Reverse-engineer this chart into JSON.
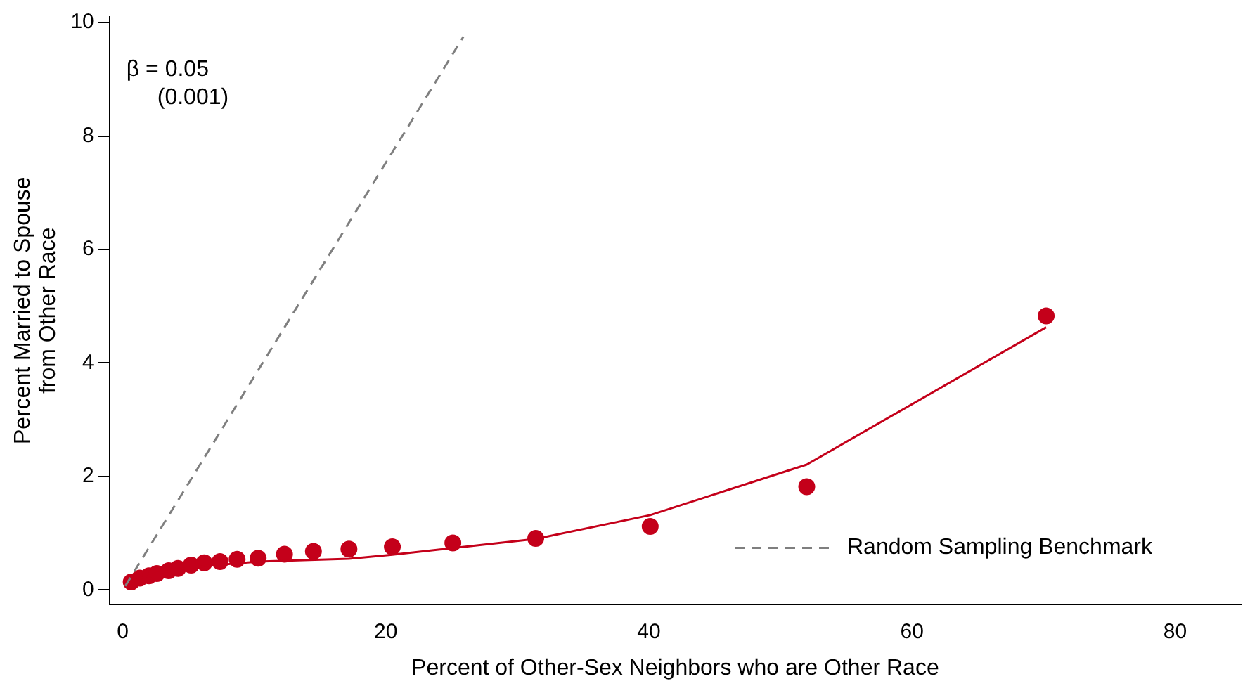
{
  "chart_data": {
    "type": "scatter",
    "xlabel": "Percent of Other-Sex Neighbors who are Other Race",
    "ylabel": "Percent Married to Spouse\nfrom Other Race",
    "xlim": [
      -1,
      85
    ],
    "xticks": [
      0,
      20,
      40,
      60,
      80
    ],
    "ylim": [
      -0.25,
      10.1
    ],
    "yticks": [
      0,
      2,
      4,
      6,
      8,
      10
    ],
    "grid": false,
    "legend": "bottom right",
    "marker": "circle",
    "annotations": [
      "β = 0.05",
      "(0.001)"
    ],
    "series": [
      {
        "color": "#c4001a",
        "x": [
          0.65,
          1.3,
          2.0,
          2.6,
          3.5,
          4.2,
          5.2,
          6.2,
          7.4,
          8.7,
          10.3,
          12.3,
          14.5,
          17.2,
          20.5,
          25.1,
          31.4,
          40.1,
          52.0,
          70.2
        ],
        "values": [
          0.14,
          0.21,
          0.25,
          0.29,
          0.34,
          0.38,
          0.44,
          0.48,
          0.5,
          0.54,
          0.56,
          0.63,
          0.68,
          0.72,
          0.76,
          0.83,
          0.91,
          1.12,
          1.82,
          4.83
        ]
      },
      {
        "type": "line",
        "color": "#c4001a",
        "marker": "none",
        "line_style": "solid",
        "x": [
          0.65,
          2.6,
          5.2,
          10.3,
          17.2,
          20.5,
          25.1,
          31.4,
          40.1,
          52.0,
          70.2
        ],
        "values": [
          0.15,
          0.3,
          0.4,
          0.5,
          0.55,
          0.62,
          0.74,
          0.9,
          1.32,
          2.21,
          4.63
        ]
      },
      {
        "type": "line",
        "name": "Random Sampling Benchmark",
        "color": "#7f7f7f",
        "marker": "none",
        "line_style": "dashed",
        "x": [
          0.2,
          25.9
        ],
        "values": [
          0.07,
          9.75
        ]
      }
    ]
  }
}
